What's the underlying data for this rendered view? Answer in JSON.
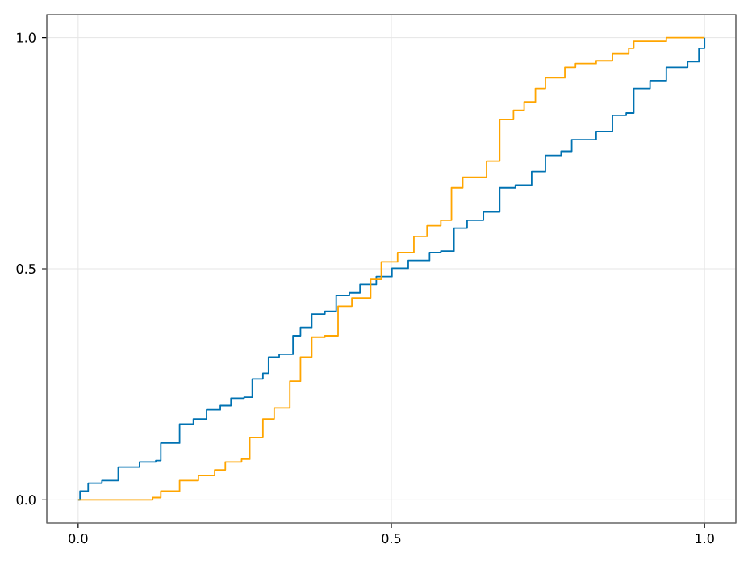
{
  "chart_data": {
    "type": "step",
    "xlim": [
      -0.05,
      1.05
    ],
    "ylim": [
      -0.05,
      1.05
    ],
    "xticks": [
      {
        "value": 0,
        "label": "0.0"
      },
      {
        "value": 0.5,
        "label": "0.5"
      },
      {
        "value": 1,
        "label": "1.0"
      }
    ],
    "yticks": [
      {
        "value": 0,
        "label": "0.0"
      },
      {
        "value": 0.5,
        "label": "0.5"
      },
      {
        "value": 1,
        "label": "1.0"
      }
    ],
    "grid": true,
    "marker": "none",
    "line_style": "solid",
    "series": [
      {
        "color": "#0072b2",
        "x": [
          0,
          0.003,
          0.016,
          0.038,
          0.064,
          0.098,
          0.124,
          0.132,
          0.162,
          0.184,
          0.205,
          0.227,
          0.244,
          0.265,
          0.278,
          0.295,
          0.304,
          0.321,
          0.343,
          0.355,
          0.373,
          0.394,
          0.412,
          0.433,
          0.45,
          0.476,
          0.501,
          0.527,
          0.561,
          0.579,
          0.6,
          0.621,
          0.647,
          0.673,
          0.698,
          0.724,
          0.746,
          0.771,
          0.788,
          0.827,
          0.853,
          0.875,
          0.887,
          0.913,
          0.939,
          0.973,
          0.991,
          1
        ],
        "values": [
          0,
          0.019,
          0.036,
          0.042,
          0.071,
          0.082,
          0.085,
          0.123,
          0.164,
          0.175,
          0.195,
          0.204,
          0.22,
          0.222,
          0.262,
          0.274,
          0.309,
          0.315,
          0.355,
          0.373,
          0.402,
          0.408,
          0.442,
          0.448,
          0.466,
          0.483,
          0.501,
          0.518,
          0.535,
          0.538,
          0.588,
          0.605,
          0.623,
          0.675,
          0.681,
          0.71,
          0.745,
          0.754,
          0.779,
          0.797,
          0.832,
          0.837,
          0.89,
          0.907,
          0.936,
          0.948,
          0.977,
          1
        ]
      },
      {
        "color": "#ffa500",
        "x": [
          0,
          0.046,
          0.119,
          0.132,
          0.162,
          0.192,
          0.218,
          0.235,
          0.261,
          0.274,
          0.295,
          0.313,
          0.338,
          0.355,
          0.373,
          0.394,
          0.415,
          0.437,
          0.467,
          0.484,
          0.51,
          0.536,
          0.557,
          0.579,
          0.596,
          0.614,
          0.652,
          0.673,
          0.695,
          0.712,
          0.73,
          0.746,
          0.777,
          0.794,
          0.827,
          0.853,
          0.879,
          0.887,
          0.939,
          1
        ],
        "values": [
          0,
          0,
          0.005,
          0.019,
          0.042,
          0.053,
          0.065,
          0.082,
          0.088,
          0.135,
          0.175,
          0.199,
          0.257,
          0.309,
          0.352,
          0.355,
          0.419,
          0.437,
          0.477,
          0.515,
          0.535,
          0.57,
          0.593,
          0.605,
          0.675,
          0.698,
          0.733,
          0.823,
          0.843,
          0.861,
          0.89,
          0.913,
          0.936,
          0.944,
          0.95,
          0.965,
          0.977,
          0.992,
          1,
          1
        ]
      }
    ]
  }
}
